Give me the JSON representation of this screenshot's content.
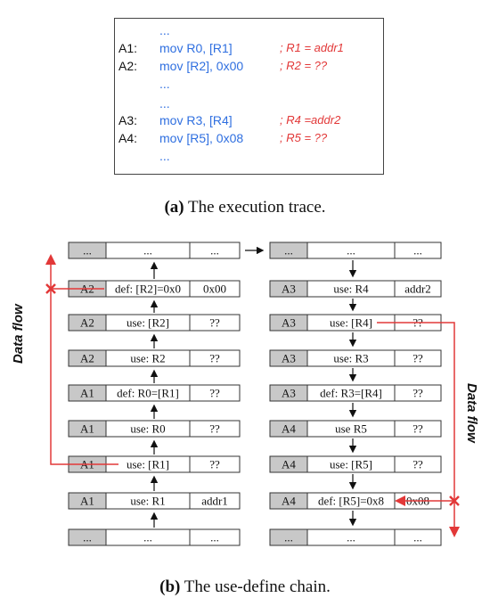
{
  "trace": {
    "lines": [
      {
        "label": "",
        "instr": "...",
        "comment": ""
      },
      {
        "label": "A1:",
        "instr": "mov R0, [R1]",
        "comment": "; R1 = addr1"
      },
      {
        "label": "A2:",
        "instr": "mov [R2], 0x00",
        "comment": "; R2 = ??"
      },
      {
        "label": "",
        "instr": "...",
        "comment": ""
      },
      {
        "label": "",
        "instr": "...",
        "comment": ""
      },
      {
        "label": "A3:",
        "instr": "mov R3, [R4]",
        "comment": "; R4 =addr2"
      },
      {
        "label": "A4:",
        "instr": "mov [R5], 0x08",
        "comment": "; R5 = ??"
      },
      {
        "label": "",
        "instr": "...",
        "comment": ""
      }
    ]
  },
  "caption_a": {
    "tag": "(a)",
    "text": " The execution trace."
  },
  "caption_b": {
    "tag": "(b)",
    "text": " The use-define chain."
  },
  "chain": {
    "left": [
      [
        "...",
        "...",
        "..."
      ],
      [
        "A2",
        "def: [R2]=0x0",
        "0x00"
      ],
      [
        "A2",
        "use: [R2]",
        "??"
      ],
      [
        "A2",
        "use: R2",
        "??"
      ],
      [
        "A1",
        "def: R0=[R1]",
        "??"
      ],
      [
        "A1",
        "use: R0",
        "??"
      ],
      [
        "A1",
        "use: [R1]",
        "??"
      ],
      [
        "A1",
        "use: R1",
        "addr1"
      ],
      [
        "...",
        "...",
        "..."
      ]
    ],
    "right": [
      [
        "...",
        "...",
        "..."
      ],
      [
        "A3",
        "use: R4",
        "addr2"
      ],
      [
        "A3",
        "use: [R4]",
        "??"
      ],
      [
        "A3",
        "use: R3",
        "??"
      ],
      [
        "A3",
        "def: R3=[R4]",
        "??"
      ],
      [
        "A4",
        "use R5",
        "??"
      ],
      [
        "A4",
        "use: [R5]",
        "??"
      ],
      [
        "A4",
        "def: [R5]=0x8",
        "0x08"
      ],
      [
        "...",
        "...",
        "..."
      ]
    ]
  },
  "flow_labels": {
    "left": "Data flow",
    "right": "Data flow"
  },
  "colors": {
    "flow": "#e23838",
    "instr": "#2f6fe0",
    "addr_cell": "#c8c8c8"
  }
}
